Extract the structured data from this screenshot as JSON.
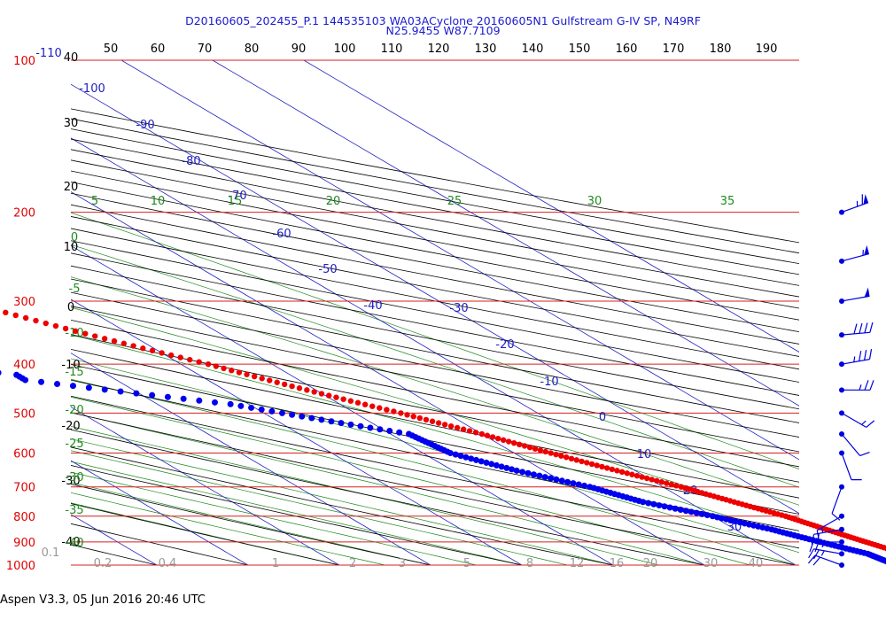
{
  "header": {
    "line1": "D20160605_202455_P.1 144535103 WA03ACyclone 20160605N1 Gulfstream G-IV SP, N49RF",
    "line2": "N25.9455 W87.7109"
  },
  "footer": {
    "text": "Aspen V3.3, 05 Jun 2016  20:46 UTC"
  },
  "chart_data": {
    "type": "skew-t",
    "title": "",
    "xlabel": "",
    "ylabel": "",
    "pressure_levels": [
      "100",
      "200",
      "300",
      "400",
      "500",
      "600",
      "700",
      "800",
      "900",
      "1000"
    ],
    "top_axis_labels": [
      "-110",
      "50",
      "60",
      "70",
      "80",
      "90",
      "100",
      "110",
      "120",
      "130",
      "140",
      "150",
      "160",
      "170",
      "180",
      "190"
    ],
    "isotherm_labels": [
      "-100",
      "-90",
      "-80",
      "-70",
      "-60",
      "-50",
      "-40",
      "-30",
      "-20",
      "-10",
      "0",
      "10",
      "20",
      "30"
    ],
    "left_axis_labels": [
      "40",
      "30",
      "20",
      "10",
      "0",
      "-10",
      "-20",
      "-30",
      "-40"
    ],
    "mixing_ratio_labels": [
      "0.1",
      "0.2",
      "0.4",
      "1",
      "2",
      "3",
      "5",
      "8",
      "12",
      "16",
      "20",
      "30",
      "40"
    ],
    "dry_adiabat_labels": [
      "5",
      "10",
      "15",
      "20",
      "25",
      "30",
      "35"
    ],
    "moist_adiabat_labels": [
      "0",
      "-5",
      "-10",
      "-15",
      "-20",
      "-25",
      "-30",
      "-35",
      "-40"
    ],
    "colors": {
      "pressure_lines": "#d42020",
      "isotherms": "#2020c0",
      "dry_adiabats": "#000000",
      "moist_adiabats": "#1e8a1e",
      "temperature": "#ee0000",
      "dewpoint": "#0000ee",
      "pressure_labels": "#e00000",
      "grey_labels": "#999999"
    },
    "series": [
      {
        "key": "temperature",
        "points": [
          [
            201,
            -48
          ],
          [
            230,
            -44
          ],
          [
            270,
            -37
          ],
          [
            300,
            -32
          ],
          [
            340,
            -26
          ],
          [
            380,
            -20
          ],
          [
            400,
            -17
          ],
          [
            450,
            -11
          ],
          [
            500,
            -5
          ],
          [
            550,
            0
          ],
          [
            600,
            4
          ],
          [
            650,
            8
          ],
          [
            700,
            12
          ],
          [
            750,
            15
          ],
          [
            800,
            18
          ],
          [
            850,
            20
          ],
          [
            900,
            22
          ],
          [
            950,
            24
          ],
          [
            1000,
            27
          ]
        ]
      },
      {
        "key": "dewpoint",
        "points": [
          [
            250,
            -70
          ],
          [
            265,
            -66
          ],
          [
            275,
            -62
          ],
          [
            280,
            -54
          ],
          [
            300,
            -52
          ],
          [
            320,
            -50
          ],
          [
            330,
            -43
          ],
          [
            338,
            -37
          ],
          [
            345,
            -60
          ],
          [
            360,
            -61
          ],
          [
            370,
            -52
          ],
          [
            380,
            -80
          ],
          [
            395,
            -70
          ],
          [
            400,
            -48
          ],
          [
            420,
            -40
          ],
          [
            430,
            -40
          ],
          [
            480,
            -22
          ],
          [
            500,
            -18
          ],
          [
            550,
            -8
          ],
          [
            600,
            -7
          ],
          [
            650,
            -3
          ],
          [
            700,
            2
          ],
          [
            750,
            5
          ],
          [
            800,
            10
          ],
          [
            850,
            14
          ],
          [
            900,
            17
          ],
          [
            950,
            20
          ],
          [
            1000,
            21
          ]
        ]
      }
    ],
    "wind_barbs": [
      {
        "p": 200,
        "dir": 250,
        "kt": 65
      },
      {
        "p": 250,
        "dir": 255,
        "kt": 55
      },
      {
        "p": 300,
        "dir": 260,
        "kt": 50
      },
      {
        "p": 350,
        "dir": 265,
        "kt": 40
      },
      {
        "p": 400,
        "dir": 260,
        "kt": 35
      },
      {
        "p": 450,
        "dir": 270,
        "kt": 25
      },
      {
        "p": 500,
        "dir": 300,
        "kt": 15
      },
      {
        "p": 550,
        "dir": 320,
        "kt": 10
      },
      {
        "p": 600,
        "dir": 340,
        "kt": 10
      },
      {
        "p": 700,
        "dir": 20,
        "kt": 10
      },
      {
        "p": 800,
        "dir": 60,
        "kt": 15
      },
      {
        "p": 850,
        "dir": 80,
        "kt": 20
      },
      {
        "p": 900,
        "dir": 90,
        "kt": 25
      },
      {
        "p": 950,
        "dir": 100,
        "kt": 25
      },
      {
        "p": 1000,
        "dir": 110,
        "kt": 20
      }
    ]
  }
}
